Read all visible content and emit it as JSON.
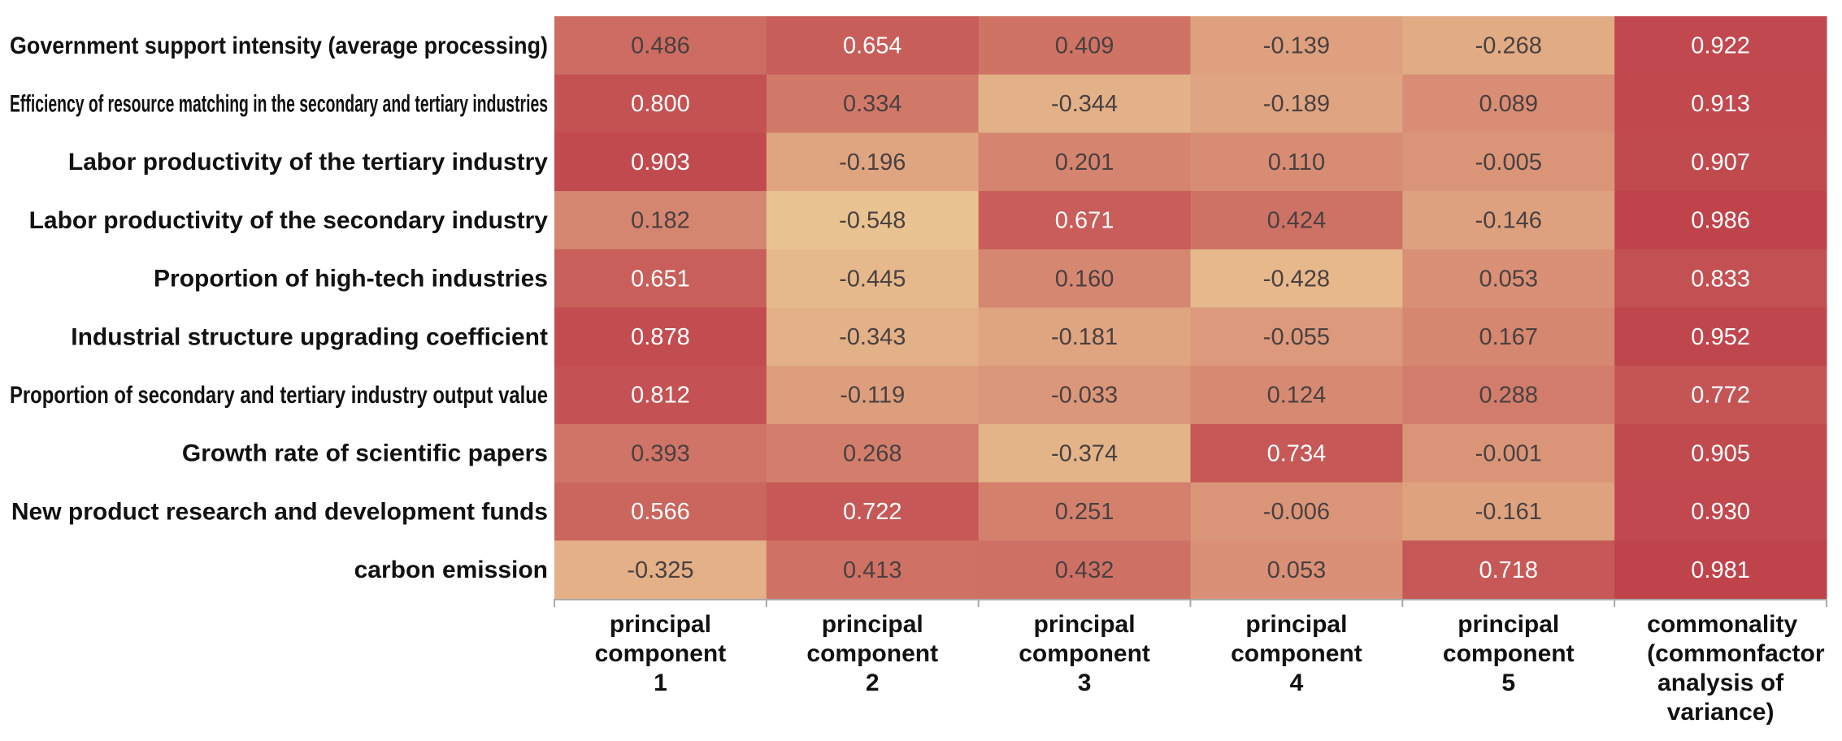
{
  "chart_data": {
    "type": "heatmap",
    "rows": [
      "Government support intensity (average processing)",
      "Efficiency of resource matching in the secondary and tertiary industries",
      "Labor productivity of the tertiary industry",
      "Labor productivity of the secondary industry",
      "Proportion of high-tech industries",
      "Industrial structure upgrading coefficient",
      "Proportion of secondary and tertiary industry output value",
      "Growth rate of scientific papers",
      "New product research and development funds",
      "carbon emission"
    ],
    "columns": [
      "principal component 1",
      "principal component 2",
      "principal component 3",
      "principal component 4",
      "principal component 5",
      "commonality (commonfactor analysis of variance)"
    ],
    "values": [
      [
        0.486,
        0.654,
        0.409,
        -0.139,
        -0.268,
        0.922
      ],
      [
        0.8,
        0.334,
        -0.344,
        -0.189,
        0.089,
        0.913
      ],
      [
        0.903,
        -0.196,
        0.201,
        0.11,
        -0.005,
        0.907
      ],
      [
        0.182,
        -0.548,
        0.671,
        0.424,
        -0.146,
        0.986
      ],
      [
        0.651,
        -0.445,
        0.16,
        -0.428,
        0.053,
        0.833
      ],
      [
        0.878,
        -0.343,
        -0.181,
        -0.055,
        0.167,
        0.952
      ],
      [
        0.812,
        -0.119,
        -0.033,
        0.124,
        0.288,
        0.772
      ],
      [
        0.393,
        0.268,
        -0.374,
        0.734,
        -0.001,
        0.905
      ],
      [
        0.566,
        0.722,
        0.251,
        -0.006,
        -0.161,
        0.93
      ],
      [
        -0.325,
        0.413,
        0.432,
        0.053,
        0.718,
        0.981
      ]
    ],
    "value_labels": [
      [
        "0.486",
        "0.654",
        "0.409",
        "-0.139",
        "-0.268",
        "0.922"
      ],
      [
        "0.800",
        "0.334",
        "-0.344",
        "-0.189",
        "0.089",
        "0.913"
      ],
      [
        "0.903",
        "-0.196",
        "0.201",
        "0.110",
        "-0.005",
        "0.907"
      ],
      [
        "0.182",
        "-0.548",
        "0.671",
        "0.424",
        "-0.146",
        "0.986"
      ],
      [
        "0.651",
        "-0.445",
        "0.160",
        "-0.428",
        "0.053",
        "0.833"
      ],
      [
        "0.878",
        "-0.343",
        "-0.181",
        "-0.055",
        "0.167",
        "0.952"
      ],
      [
        "0.812",
        "-0.119",
        "-0.033",
        "0.124",
        "0.288",
        "0.772"
      ],
      [
        "0.393",
        "0.268",
        "-0.374",
        "0.734",
        "-0.001",
        "0.905"
      ],
      [
        "0.566",
        "0.722",
        "0.251",
        "-0.006",
        "-0.161",
        "0.930"
      ],
      [
        "-0.325",
        "0.413",
        "0.432",
        "0.053",
        "0.718",
        "0.981"
      ]
    ],
    "colors": [
      "#e9c291",
      "#bf434b"
    ]
  }
}
